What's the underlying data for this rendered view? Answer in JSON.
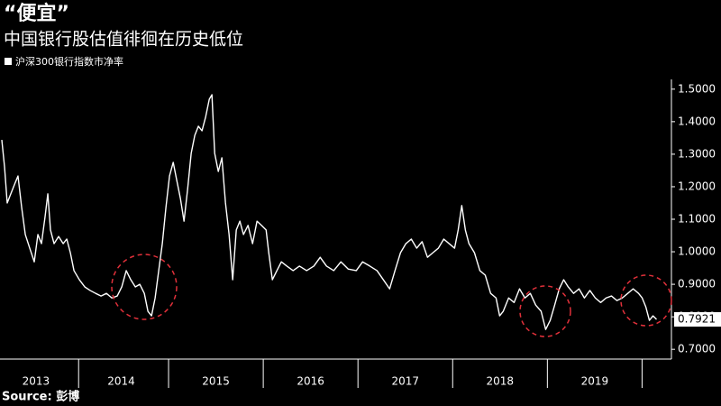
{
  "chart_data": {
    "type": "line",
    "title": "“便宜”",
    "subtitle": "中国银行股估值徘徊在历史低位",
    "source": "Source: 彭博",
    "x": [
      2013.239,
      2013.268,
      2013.296,
      2013.334,
      2013.372,
      2013.41,
      2013.449,
      2013.487,
      2013.534,
      2013.582,
      2013.62,
      2013.658,
      2013.696,
      2013.725,
      2013.753,
      2013.791,
      2013.839,
      2013.887,
      2013.925,
      2013.963,
      2014.001,
      2014.058,
      2014.115,
      2014.172,
      2014.23,
      2014.287,
      2014.344,
      2014.401,
      2014.458,
      2014.506,
      2014.553,
      2014.601,
      2014.649,
      2014.696,
      2014.744,
      2014.782,
      2014.82,
      2014.858,
      2014.896,
      2014.934,
      2014.972,
      2015.01,
      2015.049,
      2015.087,
      2015.125,
      2015.163,
      2015.201,
      2015.239,
      2015.277,
      2015.315,
      2015.353,
      2015.391,
      2015.43,
      2015.458,
      2015.487,
      2015.525,
      2015.563,
      2015.601,
      2015.639,
      2015.677,
      2015.715,
      2015.753,
      2015.791,
      2015.839,
      2015.887,
      2015.934,
      2015.982,
      2016.03,
      2016.058,
      2016.096,
      2016.144,
      2016.191,
      2016.249,
      2016.315,
      2016.382,
      2016.458,
      2016.534,
      2016.601,
      2016.668,
      2016.744,
      2016.82,
      2016.896,
      2016.982,
      2017.049,
      2017.125,
      2017.201,
      2017.268,
      2017.334,
      2017.391,
      2017.449,
      2017.506,
      2017.563,
      2017.62,
      2017.677,
      2017.734,
      2017.791,
      2017.849,
      2017.906,
      2017.963,
      2018.02,
      2018.058,
      2018.096,
      2018.134,
      2018.172,
      2018.23,
      2018.287,
      2018.344,
      2018.401,
      2018.458,
      2018.496,
      2018.534,
      2018.591,
      2018.649,
      2018.706,
      2018.763,
      2018.82,
      2018.877,
      2018.934,
      2018.982,
      2019.03,
      2019.077,
      2019.125,
      2019.172,
      2019.22,
      2019.277,
      2019.334,
      2019.391,
      2019.449,
      2019.506,
      2019.563,
      2019.62,
      2019.677,
      2019.734,
      2019.791,
      2019.849,
      2019.906,
      2019.963,
      2020.001,
      2020.039,
      2020.077,
      2020.115,
      2020.153
    ],
    "series": [
      {
        "name": "沪深300银行指数市净率",
        "color": "#ffffff",
        "values": [
          1.344,
          1.261,
          1.15,
          1.178,
          1.206,
          1.233,
          1.136,
          1.053,
          1.011,
          0.969,
          1.053,
          1.025,
          1.108,
          1.178,
          1.067,
          1.025,
          1.047,
          1.025,
          1.039,
          0.997,
          0.942,
          0.914,
          0.892,
          0.881,
          0.872,
          0.864,
          0.872,
          0.858,
          0.864,
          0.892,
          0.942,
          0.914,
          0.892,
          0.9,
          0.872,
          0.817,
          0.803,
          0.858,
          0.942,
          1.025,
          1.136,
          1.233,
          1.275,
          1.219,
          1.164,
          1.094,
          1.192,
          1.303,
          1.358,
          1.386,
          1.372,
          1.414,
          1.469,
          1.483,
          1.303,
          1.247,
          1.289,
          1.15,
          1.053,
          0.914,
          1.067,
          1.094,
          1.053,
          1.081,
          1.025,
          1.094,
          1.081,
          1.067,
          0.997,
          0.914,
          0.942,
          0.969,
          0.956,
          0.942,
          0.956,
          0.942,
          0.956,
          0.983,
          0.956,
          0.942,
          0.969,
          0.947,
          0.942,
          0.969,
          0.956,
          0.942,
          0.914,
          0.886,
          0.942,
          0.997,
          1.025,
          1.039,
          1.011,
          1.031,
          0.983,
          0.997,
          1.011,
          1.039,
          1.025,
          1.011,
          1.067,
          1.142,
          1.067,
          1.025,
          0.997,
          0.942,
          0.928,
          0.872,
          0.858,
          0.803,
          0.817,
          0.858,
          0.844,
          0.886,
          0.858,
          0.872,
          0.836,
          0.817,
          0.761,
          0.789,
          0.836,
          0.886,
          0.914,
          0.892,
          0.872,
          0.886,
          0.858,
          0.881,
          0.858,
          0.844,
          0.858,
          0.864,
          0.85,
          0.858,
          0.872,
          0.886,
          0.872,
          0.858,
          0.831,
          0.789,
          0.803,
          0.7921
        ]
      }
    ],
    "xlim": [
      2013.22,
      2020.31
    ],
    "xticks": [
      {
        "value": 2013.6,
        "label": "2013"
      },
      {
        "value": 2014.5,
        "label": "2014"
      },
      {
        "value": 2015.5,
        "label": "2015"
      },
      {
        "value": 2016.5,
        "label": "2016"
      },
      {
        "value": 2017.5,
        "label": "2017"
      },
      {
        "value": 2018.5,
        "label": "2018"
      },
      {
        "value": 2019.5,
        "label": "2019"
      }
    ],
    "ylim": [
      0.67,
      1.53
    ],
    "yticks": [
      {
        "value": 0.7,
        "label": "0.7000"
      },
      {
        "value": 0.8,
        "label": "0.8000"
      },
      {
        "value": 0.9,
        "label": "0.9000"
      },
      {
        "value": 1.0,
        "label": "1.0000"
      },
      {
        "value": 1.1,
        "label": "1.1000"
      },
      {
        "value": 1.2,
        "label": "1.2000"
      },
      {
        "value": 1.3,
        "label": "1.3000"
      },
      {
        "value": 1.4,
        "label": "1.4000"
      },
      {
        "value": 1.5,
        "label": "1.5000"
      }
    ],
    "grid": false
  }
}
